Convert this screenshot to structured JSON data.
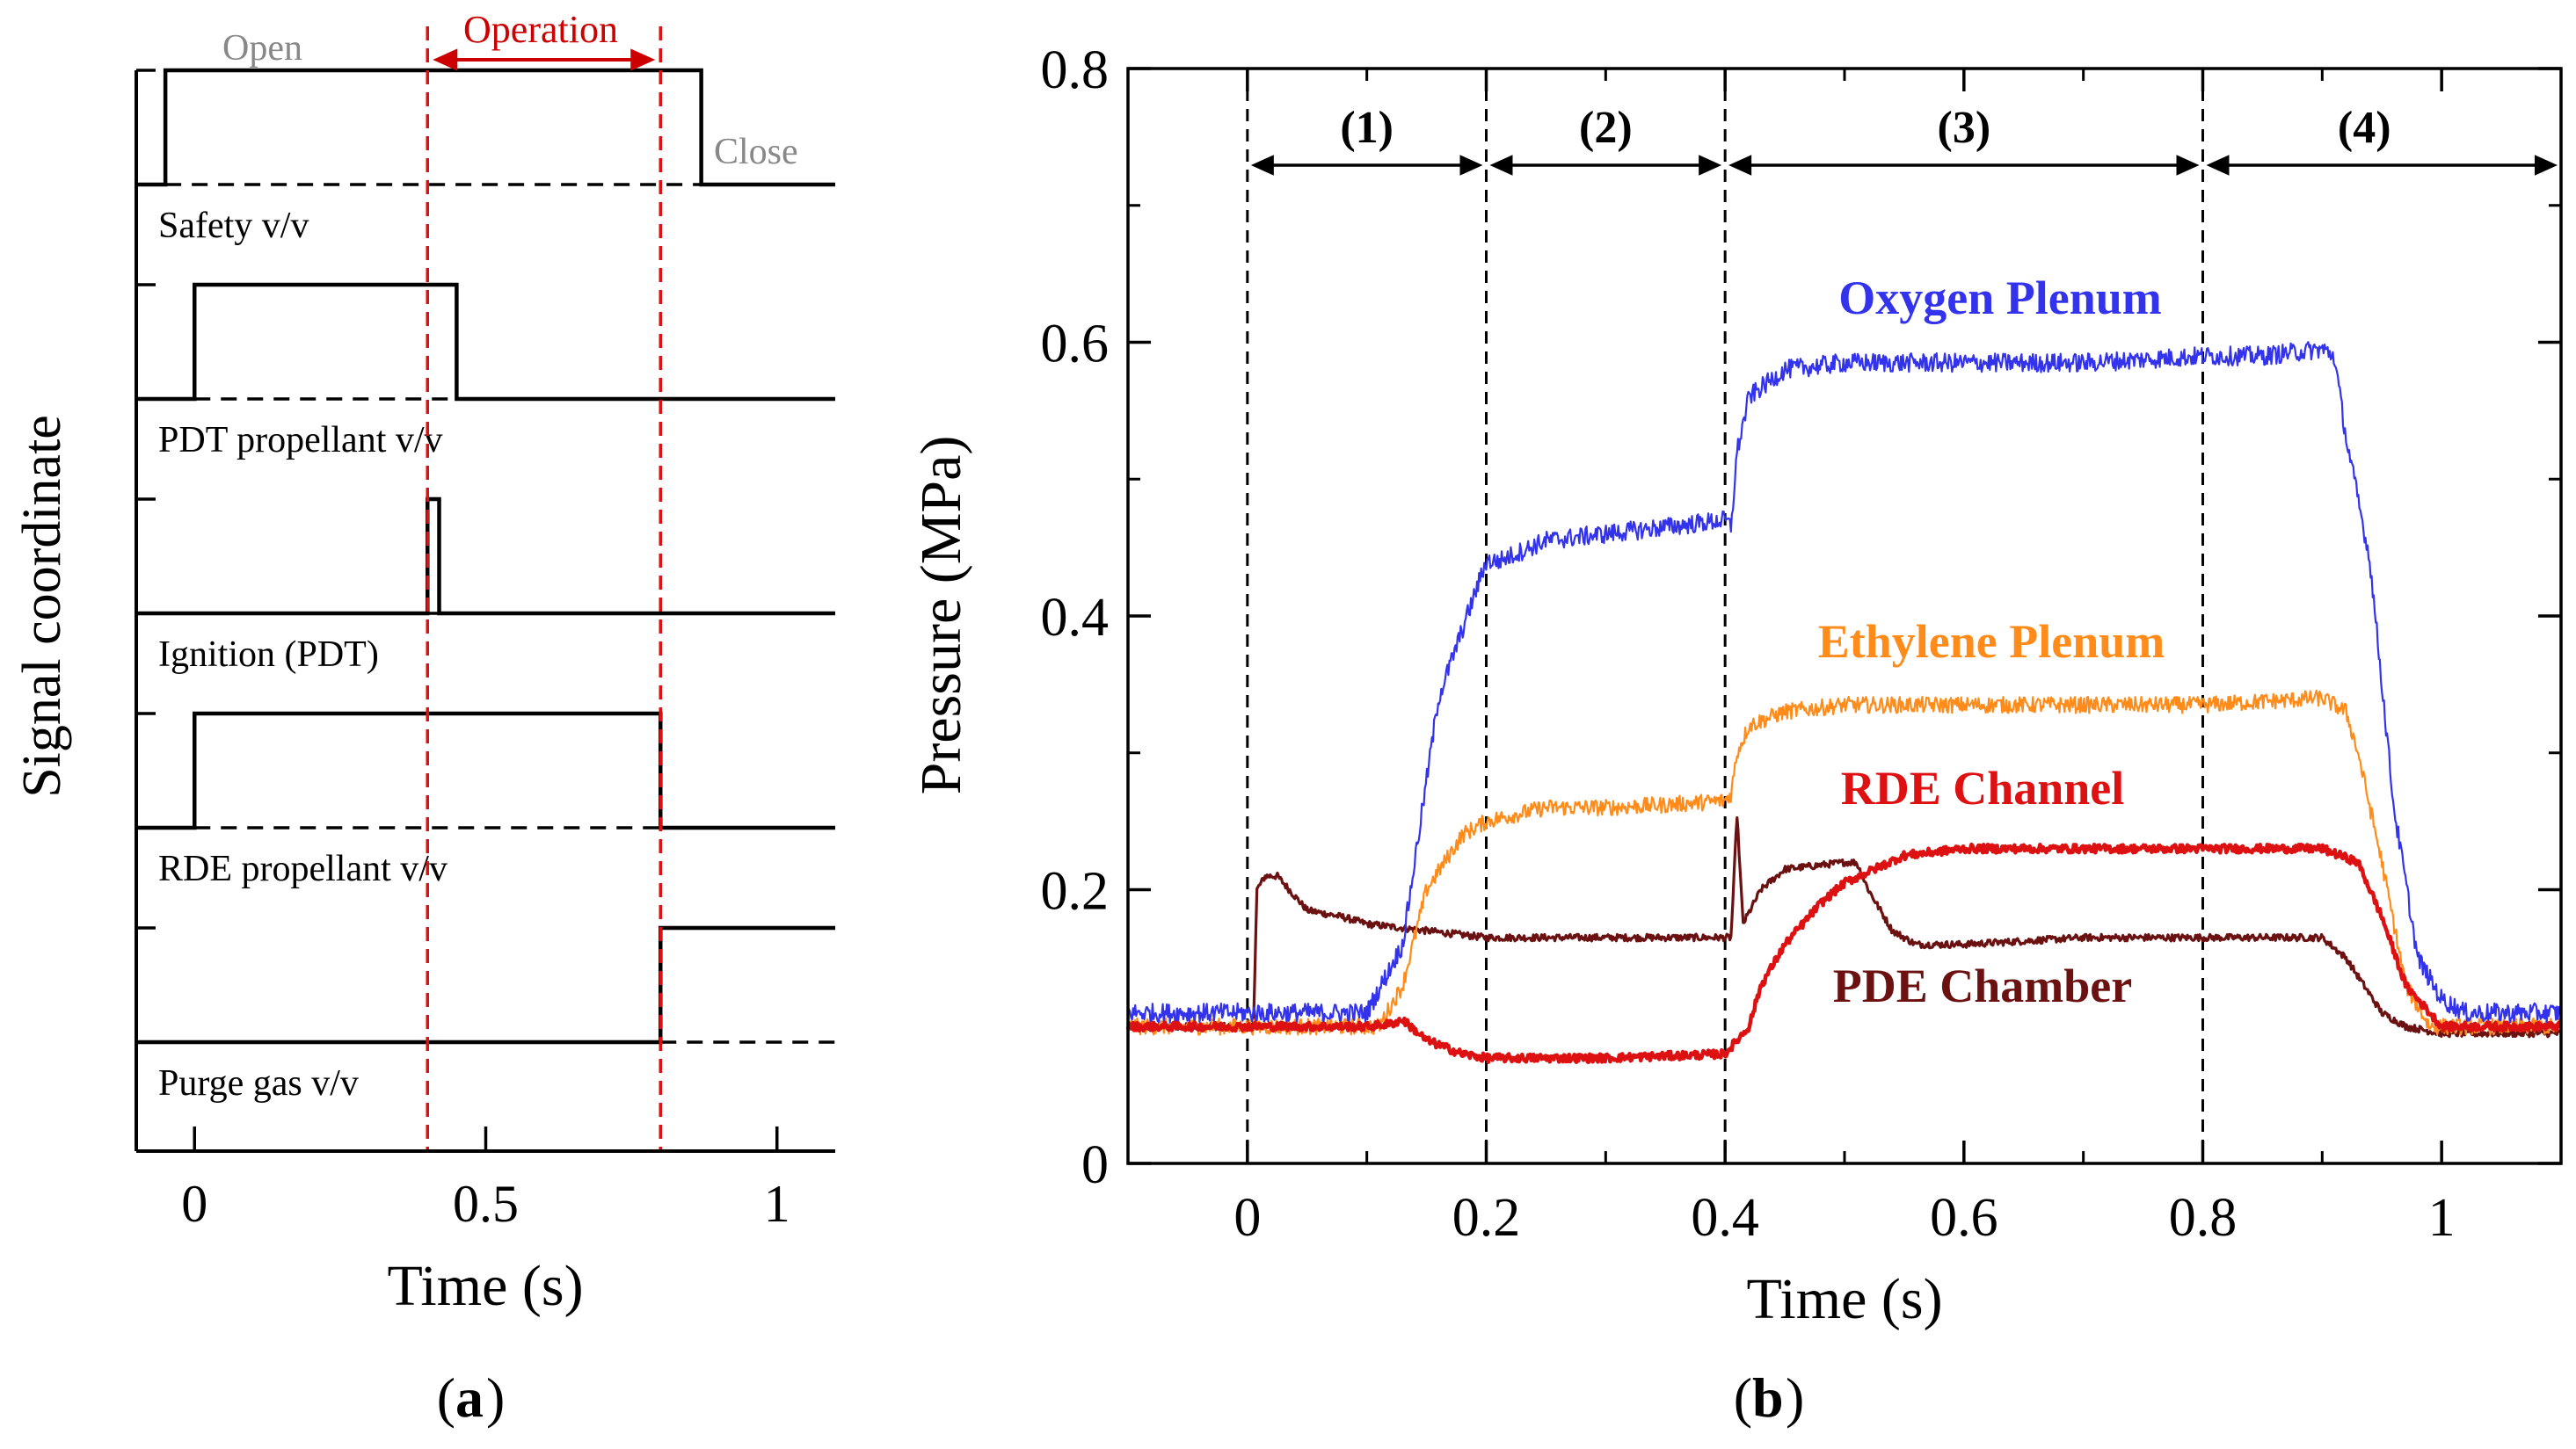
{
  "chart_data": [
    {
      "id": "a",
      "type": "line",
      "panel_label": "a",
      "xlabel": "Time (s)",
      "ylabel": "Signal coordinate",
      "xlim": [
        -0.1,
        1.1
      ],
      "xticks": [
        0,
        0.5,
        1
      ],
      "xtick_labels": [
        "0",
        "0.5",
        "1"
      ],
      "top_annotations": {
        "open": "Open",
        "operation": "Operation",
        "close": "Close"
      },
      "operation_window": [
        0.4,
        0.8
      ],
      "series": [
        {
          "name": "Safety v/v",
          "on": [
            -0.05,
            0.87
          ]
        },
        {
          "name": "PDT propellant v/v",
          "on": [
            0.0,
            0.45
          ]
        },
        {
          "name": "Ignition (PDT)",
          "on": [
            0.4,
            0.42
          ]
        },
        {
          "name": "RDE propellant v/v",
          "on": [
            0.0,
            0.8
          ]
        },
        {
          "name": "Purge gas v/v",
          "on": [
            0.8,
            1.1
          ]
        }
      ]
    },
    {
      "id": "b",
      "type": "line",
      "panel_label": "b",
      "xlabel": "Time (s)",
      "ylabel": "Pressure (MPa)",
      "xlim": [
        -0.1,
        1.1
      ],
      "ylim": [
        0,
        0.8
      ],
      "xticks": [
        0,
        0.2,
        0.4,
        0.6,
        0.8,
        1
      ],
      "xtick_labels": [
        "0",
        "0.2",
        "0.4",
        "0.6",
        "0.8",
        "1"
      ],
      "yticks": [
        0,
        0.2,
        0.4,
        0.6,
        0.8
      ],
      "ytick_labels": [
        "0",
        "0.2",
        "0.4",
        "0.6",
        "0.8"
      ],
      "phase_boundaries": [
        0,
        0.2,
        0.4,
        0.8,
        1.1
      ],
      "phases": [
        "(1)",
        "(2)",
        "(3)",
        "(4)"
      ],
      "series": [
        {
          "name": "Oxygen Plenum",
          "color": "#3333ee",
          "x": [
            -0.1,
            0.1,
            0.13,
            0.16,
            0.2,
            0.21,
            0.25,
            0.3,
            0.35,
            0.4,
            0.405,
            0.41,
            0.42,
            0.45,
            0.5,
            0.6,
            0.7,
            0.8,
            0.85,
            0.9,
            0.91,
            0.92,
            0.94,
            0.96,
            0.98,
            1.0,
            1.02,
            1.1
          ],
          "y": [
            0.11,
            0.11,
            0.16,
            0.34,
            0.44,
            0.44,
            0.455,
            0.46,
            0.465,
            0.47,
            0.465,
            0.52,
            0.56,
            0.58,
            0.585,
            0.585,
            0.585,
            0.59,
            0.59,
            0.595,
            0.59,
            0.53,
            0.44,
            0.26,
            0.15,
            0.12,
            0.11,
            0.11
          ]
        },
        {
          "name": "Ethylene Plenum",
          "color": "#ff8c1a",
          "x": [
            -0.1,
            0.11,
            0.13,
            0.15,
            0.18,
            0.2,
            0.25,
            0.3,
            0.35,
            0.4,
            0.405,
            0.41,
            0.42,
            0.45,
            0.5,
            0.6,
            0.7,
            0.8,
            0.9,
            0.92,
            0.93,
            0.95,
            0.97,
            0.99,
            1.0,
            1.1
          ],
          "y": [
            0.1,
            0.1,
            0.13,
            0.2,
            0.24,
            0.25,
            0.26,
            0.26,
            0.262,
            0.265,
            0.27,
            0.3,
            0.32,
            0.33,
            0.335,
            0.335,
            0.335,
            0.335,
            0.34,
            0.33,
            0.3,
            0.22,
            0.13,
            0.1,
            0.1,
            0.1
          ]
        },
        {
          "name": "RDE Channel",
          "color": "#dd1111",
          "x": [
            -0.1,
            0.1,
            0.12,
            0.13,
            0.15,
            0.18,
            0.2,
            0.3,
            0.4,
            0.42,
            0.43,
            0.45,
            0.48,
            0.5,
            0.55,
            0.6,
            0.7,
            0.8,
            0.9,
            0.93,
            0.95,
            0.97,
            1.0,
            1.1
          ],
          "y": [
            0.1,
            0.1,
            0.102,
            0.105,
            0.09,
            0.08,
            0.077,
            0.077,
            0.08,
            0.1,
            0.13,
            0.16,
            0.19,
            0.205,
            0.225,
            0.23,
            0.23,
            0.23,
            0.23,
            0.22,
            0.18,
            0.13,
            0.1,
            0.1
          ]
        },
        {
          "name": "PDE Chamber",
          "color": "#6b1111",
          "x": [
            -0.1,
            0.005,
            0.008,
            0.015,
            0.025,
            0.035,
            0.05,
            0.08,
            0.1,
            0.15,
            0.2,
            0.3,
            0.4,
            0.405,
            0.41,
            0.415,
            0.43,
            0.45,
            0.5,
            0.51,
            0.52,
            0.54,
            0.56,
            0.6,
            0.7,
            0.8,
            0.9,
            0.92,
            0.95,
            0.97,
            1.0,
            1.1
          ],
          "y": [
            0.1,
            0.1,
            0.2,
            0.21,
            0.21,
            0.2,
            0.185,
            0.18,
            0.175,
            0.17,
            0.165,
            0.165,
            0.165,
            0.165,
            0.255,
            0.175,
            0.2,
            0.215,
            0.22,
            0.22,
            0.2,
            0.17,
            0.16,
            0.16,
            0.165,
            0.165,
            0.165,
            0.15,
            0.11,
            0.1,
            0.095,
            0.095
          ]
        }
      ]
    }
  ]
}
